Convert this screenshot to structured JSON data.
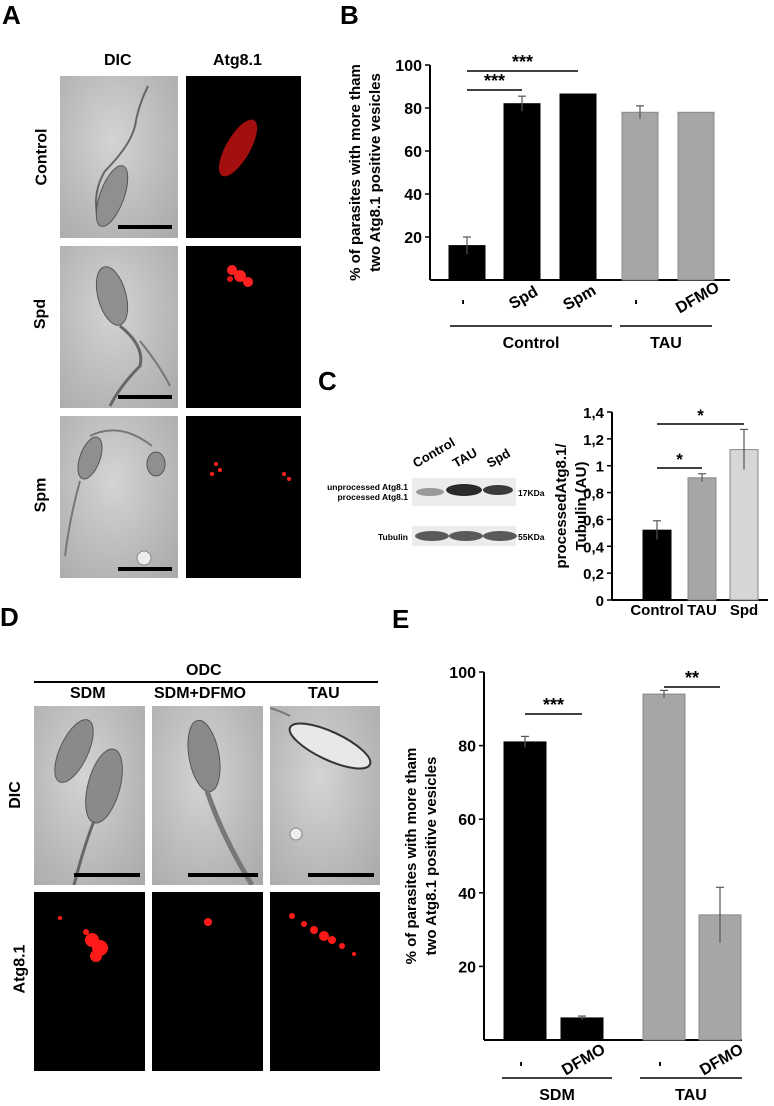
{
  "panel_labels": {
    "a": "A",
    "b": "B",
    "c": "C",
    "d": "D",
    "e": "E"
  },
  "panel_a": {
    "col_headers": [
      "DIC",
      "Atg8.1"
    ],
    "row_labels": [
      "Control",
      "Spd",
      "Spm"
    ]
  },
  "panel_c_blot": {
    "lanes": [
      "Control",
      "TAU",
      "Spd"
    ],
    "left_labels": [
      "unprocessed Atg8.1",
      "processed Atg8.1",
      "Tubulin"
    ],
    "sizes": [
      "17KDa",
      "55KDa"
    ]
  },
  "panel_d": {
    "group": "ODC",
    "col_headers": [
      "SDM",
      "SDM+DFMO",
      "TAU"
    ],
    "row_labels": [
      "DIC",
      "Atg8.1"
    ]
  },
  "colors": {
    "black": "#000000",
    "gray": "#a6a6a6",
    "lightgray": "#d6d6d6",
    "signal": "#ff1a1a"
  },
  "chart_data": [
    {
      "id": "B",
      "type": "bar",
      "ylabel": "% of parasites with more tham two Atg8.1 positive vesicles",
      "ylim": [
        0,
        100
      ],
      "yticks": [
        "20",
        "40",
        "60",
        "80",
        "100"
      ],
      "categories": [
        "-",
        "Spd",
        "Spm",
        "-",
        "DFMO"
      ],
      "groups": [
        "Control",
        "TAU"
      ],
      "values": [
        16,
        82,
        86.5,
        78,
        78
      ],
      "errors": [
        4,
        3.5,
        0,
        3,
        0
      ],
      "significance": [
        {
          "label": "***",
          "from": 0,
          "to": 1
        },
        {
          "label": "***",
          "from": 0,
          "to": 2
        }
      ]
    },
    {
      "id": "C",
      "type": "bar",
      "ylabel": "processedAtg8.1/ Tubulin (AU)",
      "ylim": [
        0,
        1.4
      ],
      "yticks": [
        "0",
        "0,2",
        "0,4",
        "0,6",
        "0,8",
        "1",
        "1,2",
        "1,4"
      ],
      "categories": [
        "Control",
        "TAU",
        "Spd"
      ],
      "values": [
        0.52,
        0.91,
        1.12
      ],
      "errors": [
        0.07,
        0.03,
        0.15
      ],
      "significance": [
        {
          "label": "*",
          "from": 0,
          "to": 1
        },
        {
          "label": "*",
          "from": 0,
          "to": 2
        }
      ]
    },
    {
      "id": "E",
      "type": "bar",
      "ylabel": "% of parasites with more tham two Atg8.1 positive vesicles",
      "ylim": [
        0,
        100
      ],
      "yticks": [
        "20",
        "40",
        "60",
        "80",
        "100"
      ],
      "categories": [
        "-",
        "DFMO",
        "-",
        "DFMO"
      ],
      "groups": [
        "SDM",
        "TAU"
      ],
      "values": [
        81,
        6,
        94,
        34
      ],
      "errors": [
        1.5,
        0.5,
        1,
        7.5
      ],
      "significance": [
        {
          "label": "***",
          "from": 0,
          "to": 1
        },
        {
          "label": "**",
          "from": 2,
          "to": 3
        }
      ]
    }
  ]
}
